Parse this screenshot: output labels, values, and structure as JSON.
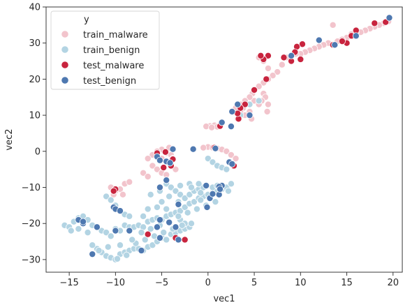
{
  "chart_data": {
    "type": "scatter",
    "title": "",
    "xlabel": "vec1",
    "ylabel": "vec2",
    "xlim": [
      -17.5,
      21
    ],
    "ylim": [
      -33.5,
      40
    ],
    "grid": false,
    "x_ticks": [
      -15,
      -10,
      -5,
      0,
      5,
      10,
      15,
      20
    ],
    "y_ticks": [
      -30,
      -20,
      -10,
      0,
      10,
      20,
      30,
      40
    ],
    "legend": {
      "title": "y",
      "placement": "top-left",
      "entries": [
        "train_malware",
        "train_benign",
        "test_malware",
        "test_benign"
      ]
    },
    "series": [
      {
        "name": "train_malware",
        "color": "#f2c4cc",
        "points": [
          [
            19.5,
            36
          ],
          [
            19,
            35.5
          ],
          [
            18.5,
            35
          ],
          [
            18,
            34.5
          ],
          [
            17.5,
            34
          ],
          [
            17,
            33.5
          ],
          [
            16.5,
            33
          ],
          [
            16,
            33
          ],
          [
            15.5,
            32.5
          ],
          [
            15,
            31.5
          ],
          [
            14.5,
            31
          ],
          [
            14,
            30.5
          ],
          [
            13.5,
            35
          ],
          [
            13,
            30
          ],
          [
            12.5,
            29.5
          ],
          [
            12,
            29
          ],
          [
            11.5,
            28.5
          ],
          [
            11,
            28
          ],
          [
            10.5,
            27.5
          ],
          [
            10,
            27
          ],
          [
            9.5,
            27
          ],
          [
            9,
            26.5
          ],
          [
            8.5,
            26
          ],
          [
            8,
            24
          ],
          [
            7.5,
            22
          ],
          [
            7,
            21
          ],
          [
            6.5,
            20
          ],
          [
            6.5,
            23
          ],
          [
            6,
            19
          ],
          [
            6,
            25
          ],
          [
            5.5,
            18
          ],
          [
            5.5,
            26
          ],
          [
            5,
            17
          ],
          [
            5,
            14
          ],
          [
            4.8,
            16
          ],
          [
            4.5,
            15
          ],
          [
            4.5,
            11
          ],
          [
            4.2,
            13
          ],
          [
            4,
            14
          ],
          [
            4,
            10
          ],
          [
            3.8,
            12
          ],
          [
            3.5,
            11
          ],
          [
            3.5,
            13
          ],
          [
            3.2,
            9
          ],
          [
            3,
            12
          ],
          [
            6,
            16
          ],
          [
            6.2,
            15
          ],
          [
            6.5,
            13
          ],
          [
            6.4,
            11
          ],
          [
            5.8,
            14
          ],
          [
            5.5,
            13
          ],
          [
            4.7,
            9
          ],
          [
            0.2,
            7
          ],
          [
            0.7,
            7.2
          ],
          [
            1,
            6.8
          ],
          [
            -0.2,
            6.9
          ],
          [
            0.4,
            6.6
          ],
          [
            0,
            1.2
          ],
          [
            0.5,
            1
          ],
          [
            1,
            0.8
          ],
          [
            1.5,
            0.5
          ],
          [
            2,
            0
          ],
          [
            2.5,
            -1
          ],
          [
            3,
            -2
          ],
          [
            -0.5,
            1
          ],
          [
            -5,
            0.5
          ],
          [
            -5.5,
            0
          ],
          [
            -4.5,
            -0.5
          ],
          [
            -4,
            -1
          ],
          [
            -6,
            -1
          ],
          [
            -6.5,
            -2
          ],
          [
            -5,
            -2
          ],
          [
            -4.5,
            -3
          ],
          [
            -6,
            -4
          ],
          [
            -5.5,
            -5
          ],
          [
            -5,
            -6
          ],
          [
            -4.5,
            -6.5
          ],
          [
            -7,
            -6
          ],
          [
            -6.5,
            -7
          ],
          [
            -3.5,
            -5
          ],
          [
            -3.8,
            -2
          ],
          [
            -4.2,
            1
          ],
          [
            -10.5,
            -10
          ],
          [
            -10,
            -11
          ],
          [
            -9.5,
            -10.5
          ],
          [
            -9,
            -9
          ],
          [
            -8.5,
            -8.5
          ],
          [
            -10.2,
            -12
          ],
          [
            -9.2,
            -12
          ]
        ]
      },
      {
        "name": "train_benign",
        "color": "#b3d4e3",
        "points": [
          [
            -15.5,
            -20.5
          ],
          [
            -15,
            -21
          ],
          [
            -14.8,
            -22
          ],
          [
            -14.5,
            -19.5
          ],
          [
            -14,
            -18.5
          ],
          [
            -13.5,
            -18
          ],
          [
            -13.5,
            -20
          ],
          [
            -13,
            -19
          ],
          [
            -12.5,
            -20.5
          ],
          [
            -12,
            -21
          ],
          [
            -11.5,
            -22
          ],
          [
            -11,
            -22.5
          ],
          [
            -10.5,
            -23.5
          ],
          [
            -10,
            -21.5
          ],
          [
            -9.5,
            -22
          ],
          [
            -9,
            -20.5
          ],
          [
            -8.5,
            -21
          ],
          [
            -8,
            -21
          ],
          [
            -7.5,
            -20.5
          ],
          [
            -7,
            -21
          ],
          [
            -6.5,
            -19.5
          ],
          [
            -6,
            -19
          ],
          [
            -5.5,
            -18.5
          ],
          [
            -5,
            -19
          ],
          [
            -4.5,
            -18
          ],
          [
            -4,
            -17.5
          ],
          [
            -3.5,
            -17
          ],
          [
            -3,
            -16.5
          ],
          [
            -2.5,
            -15.5
          ],
          [
            -2,
            -14.5
          ],
          [
            -1.5,
            -14
          ],
          [
            -1,
            -13
          ],
          [
            -0.5,
            -12.5
          ],
          [
            0,
            -12
          ],
          [
            0.5,
            -11.5
          ],
          [
            1,
            -11
          ],
          [
            1.5,
            -10.5
          ],
          [
            2,
            -10
          ],
          [
            2.5,
            -9
          ],
          [
            -12,
            -27
          ],
          [
            -11.5,
            -28
          ],
          [
            -11,
            -29
          ],
          [
            -10.5,
            -29.5
          ],
          [
            -10,
            -30
          ],
          [
            -9.5,
            -28.5
          ],
          [
            -9,
            -28
          ],
          [
            -8.5,
            -27.5
          ],
          [
            -8,
            -27
          ],
          [
            -7.5,
            -27
          ],
          [
            -7,
            -27.5
          ],
          [
            -6.5,
            -26.5
          ],
          [
            -6,
            -26
          ],
          [
            -5.5,
            -25
          ],
          [
            -5,
            -24
          ],
          [
            -4.5,
            -24.5
          ],
          [
            -4,
            -23
          ],
          [
            -3.5,
            -22.5
          ],
          [
            -3,
            -22
          ],
          [
            -2.5,
            -21.5
          ],
          [
            -2,
            -21
          ],
          [
            -11,
            -12.5
          ],
          [
            -10.5,
            -13.5
          ],
          [
            -10,
            -15
          ],
          [
            -9.5,
            -16.5
          ],
          [
            -9,
            -17.5
          ],
          [
            -8.5,
            -18
          ],
          [
            -4.5,
            -9
          ],
          [
            -4,
            -10
          ],
          [
            -3.5,
            -11
          ],
          [
            -3,
            -12
          ],
          [
            -2.5,
            -13
          ],
          [
            -2,
            -12
          ],
          [
            -1.5,
            -11
          ],
          [
            -1,
            -10.5
          ],
          [
            -0.5,
            -10
          ],
          [
            0.5,
            -10
          ],
          [
            1,
            -9.5
          ],
          [
            0,
            -2
          ],
          [
            0.5,
            -3
          ],
          [
            1,
            -4
          ],
          [
            1.5,
            -4.5
          ],
          [
            2,
            -5
          ],
          [
            -5,
            -14
          ],
          [
            -5.5,
            -15.5
          ],
          [
            -4.5,
            -16
          ],
          [
            -3,
            -19
          ],
          [
            -2.5,
            -20
          ],
          [
            -6.5,
            -16
          ],
          [
            -7,
            -18
          ],
          [
            -12.5,
            -26
          ],
          [
            -11.8,
            -27.5
          ],
          [
            -10.8,
            -26.5
          ],
          [
            -9.8,
            -29.8
          ],
          [
            -8.8,
            -28.8
          ],
          [
            -7.8,
            -25.5
          ],
          [
            -6.8,
            -24.5
          ],
          [
            -5.8,
            -23.5
          ],
          [
            -4.8,
            -22.5
          ],
          [
            -3.8,
            -21.5
          ],
          [
            -2.8,
            -20.5
          ],
          [
            -1.8,
            -20
          ],
          [
            -0.8,
            -13.5
          ],
          [
            0.2,
            -13
          ],
          [
            1.2,
            -12
          ],
          [
            2.2,
            -11
          ],
          [
            -3.2,
            -14
          ],
          [
            -4.2,
            -12.5
          ],
          [
            -5.2,
            -11
          ],
          [
            -6.2,
            -12
          ],
          [
            -3,
            -9.5
          ],
          [
            -2,
            -9
          ],
          [
            -1,
            -9
          ],
          [
            -13,
            -22.5
          ],
          [
            -14,
            -21.5
          ],
          [
            -9.5,
            -26
          ],
          [
            -8.2,
            -24.5
          ],
          [
            -7.2,
            -22.5
          ],
          [
            -6.2,
            -21.5
          ],
          [
            -5.2,
            -20.5
          ],
          [
            -4.2,
            -19.5
          ],
          [
            -3.2,
            -18
          ],
          [
            -2.2,
            -17
          ],
          [
            -1.2,
            -16
          ],
          [
            -0.2,
            -15
          ],
          [
            0.8,
            -14
          ],
          [
            -1.8,
            -10
          ],
          [
            -0.8,
            -11.5
          ],
          [
            5.5,
            14
          ],
          [
            4.5,
            13
          ],
          [
            3.5,
            10
          ]
        ]
      },
      {
        "name": "test_malware",
        "color": "#c8243e",
        "points": [
          [
            19.2,
            35.8
          ],
          [
            18,
            35.5
          ],
          [
            16,
            33.5
          ],
          [
            15.5,
            32
          ],
          [
            15,
            30
          ],
          [
            14.5,
            30.5
          ],
          [
            13.5,
            29.5
          ],
          [
            10.2,
            29.7
          ],
          [
            9.6,
            29
          ],
          [
            9.4,
            27.5
          ],
          [
            10,
            25.5
          ],
          [
            9,
            25
          ],
          [
            8.2,
            26
          ],
          [
            6.5,
            26.5
          ],
          [
            6,
            25.5
          ],
          [
            5.7,
            26.5
          ],
          [
            6.3,
            20
          ],
          [
            5,
            17
          ],
          [
            4,
            13
          ],
          [
            3.5,
            12
          ],
          [
            3.3,
            9
          ],
          [
            3.2,
            10.5
          ],
          [
            1.3,
            7
          ],
          [
            0.7,
            1
          ],
          [
            2.8,
            -4
          ],
          [
            -4.8,
            -4.5
          ],
          [
            -4,
            -4
          ],
          [
            -5.5,
            -0.5
          ],
          [
            -4.6,
            -0.2
          ],
          [
            -10,
            -10.5
          ],
          [
            -10.2,
            -11
          ],
          [
            -6.5,
            -23
          ],
          [
            -3.5,
            -24
          ],
          [
            -2.5,
            -24.5
          ],
          [
            -3.8,
            -2.2
          ]
        ]
      },
      {
        "name": "test_benign",
        "color": "#4e78b0",
        "points": [
          [
            19.6,
            37
          ],
          [
            16,
            32
          ],
          [
            13.7,
            29.5
          ],
          [
            12,
            30.8
          ],
          [
            9,
            26.5
          ],
          [
            3.2,
            13
          ],
          [
            4.5,
            10
          ],
          [
            2.6,
            11
          ],
          [
            2.5,
            6.9
          ],
          [
            1.5,
            8
          ],
          [
            0.8,
            0.8
          ],
          [
            2.3,
            -3
          ],
          [
            2.6,
            -3.5
          ],
          [
            -1.6,
            0.6
          ],
          [
            -3.8,
            0.6
          ],
          [
            -5.5,
            -1.5
          ],
          [
            -5.2,
            -2.5
          ],
          [
            -4.5,
            -2.8
          ],
          [
            -4.1,
            -3.2
          ],
          [
            -4.5,
            -8
          ],
          [
            -5.2,
            -10
          ],
          [
            -10.2,
            -15.5
          ],
          [
            -10,
            -16
          ],
          [
            -9.5,
            -16.5
          ],
          [
            -12,
            -21
          ],
          [
            -10,
            -22
          ],
          [
            -8.5,
            -22
          ],
          [
            -5.5,
            -21
          ],
          [
            -5.2,
            -19
          ],
          [
            -3.5,
            -21
          ],
          [
            -3.2,
            -24.5
          ],
          [
            -5.2,
            -24
          ],
          [
            -12.5,
            -28.5
          ],
          [
            -7.2,
            -27.5
          ],
          [
            -14,
            -19
          ],
          [
            -13.5,
            -20
          ],
          [
            -13.5,
            -19.5
          ],
          [
            0.2,
            -13
          ],
          [
            1.2,
            -12
          ],
          [
            1.5,
            -9.5
          ],
          [
            1.2,
            -9.8
          ],
          [
            -0.2,
            -9.5
          ],
          [
            -0.1,
            -15.5
          ],
          [
            -3.2,
            -14.7
          ],
          [
            -4.2,
            -19.7
          ],
          [
            1.3,
            -10.5
          ],
          [
            0.5,
            -11.8
          ]
        ]
      }
    ]
  }
}
